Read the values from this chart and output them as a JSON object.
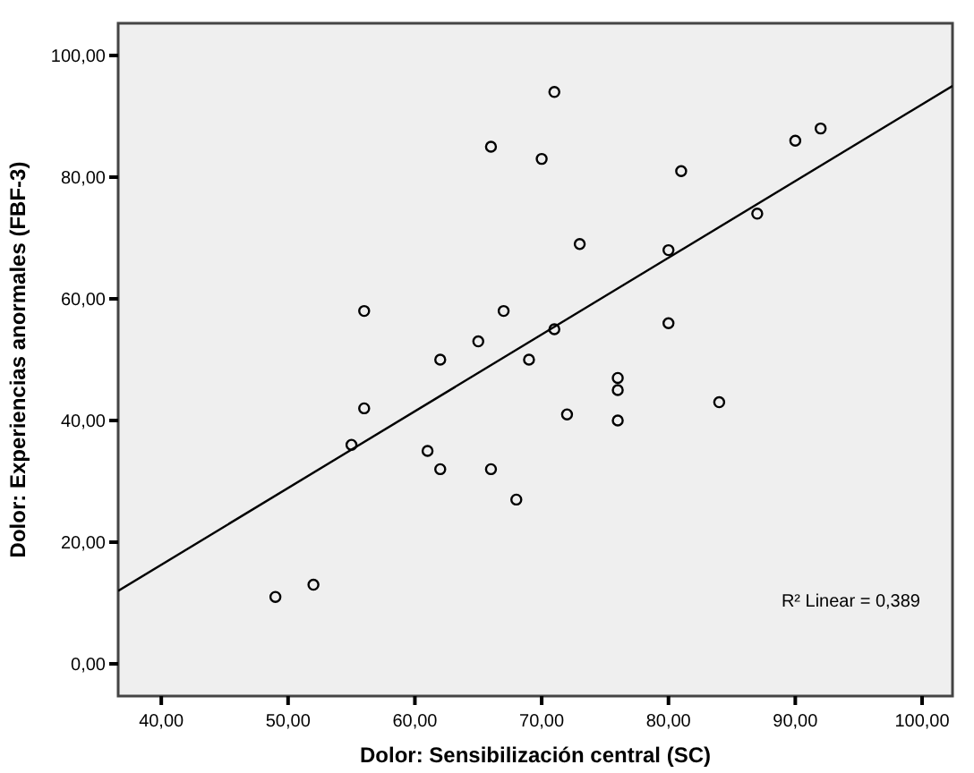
{
  "chart_data": {
    "type": "scatter",
    "xlabel": "Dolor: Sensibilización central (SC)",
    "ylabel": "Dolor: Experiencias anormales (FBF-3)",
    "xlim": [
      36.6,
      102.4
    ],
    "ylim": [
      -5.3,
      105.3
    ],
    "xticks": [
      {
        "value": 40,
        "label": "40,00"
      },
      {
        "value": 50,
        "label": "50,00"
      },
      {
        "value": 60,
        "label": "60,00"
      },
      {
        "value": 70,
        "label": "70,00"
      },
      {
        "value": 80,
        "label": "80,00"
      },
      {
        "value": 90,
        "label": "90,00"
      },
      {
        "value": 100,
        "label": "100,00"
      }
    ],
    "yticks": [
      {
        "value": 0,
        "label": "0,00"
      },
      {
        "value": 20,
        "label": "20,00"
      },
      {
        "value": 40,
        "label": "40,00"
      },
      {
        "value": 60,
        "label": "60,00"
      },
      {
        "value": 80,
        "label": "80,00"
      },
      {
        "value": 100,
        "label": "100,00"
      }
    ],
    "grid": false,
    "annotations": [
      "R² Linear = 0,389"
    ],
    "series": [
      {
        "marker": "circle",
        "color": "#000000",
        "x": [
          49,
          52,
          55,
          56,
          56,
          61,
          62,
          62,
          65,
          66,
          66,
          67,
          68,
          69,
          70,
          71,
          71,
          72,
          73,
          76,
          76,
          76,
          80,
          80,
          81,
          84,
          87,
          90,
          92
        ],
        "values": [
          11,
          13,
          36,
          42,
          58,
          35,
          32,
          50,
          53,
          32,
          85,
          58,
          27,
          50,
          83,
          94,
          55,
          41,
          69,
          47,
          45,
          40,
          68,
          56,
          81,
          43,
          74,
          86,
          88
        ]
      },
      {
        "type": "line",
        "color": "#000000",
        "x": [
          36.6,
          102.4
        ],
        "values": [
          12,
          95
        ]
      }
    ]
  }
}
